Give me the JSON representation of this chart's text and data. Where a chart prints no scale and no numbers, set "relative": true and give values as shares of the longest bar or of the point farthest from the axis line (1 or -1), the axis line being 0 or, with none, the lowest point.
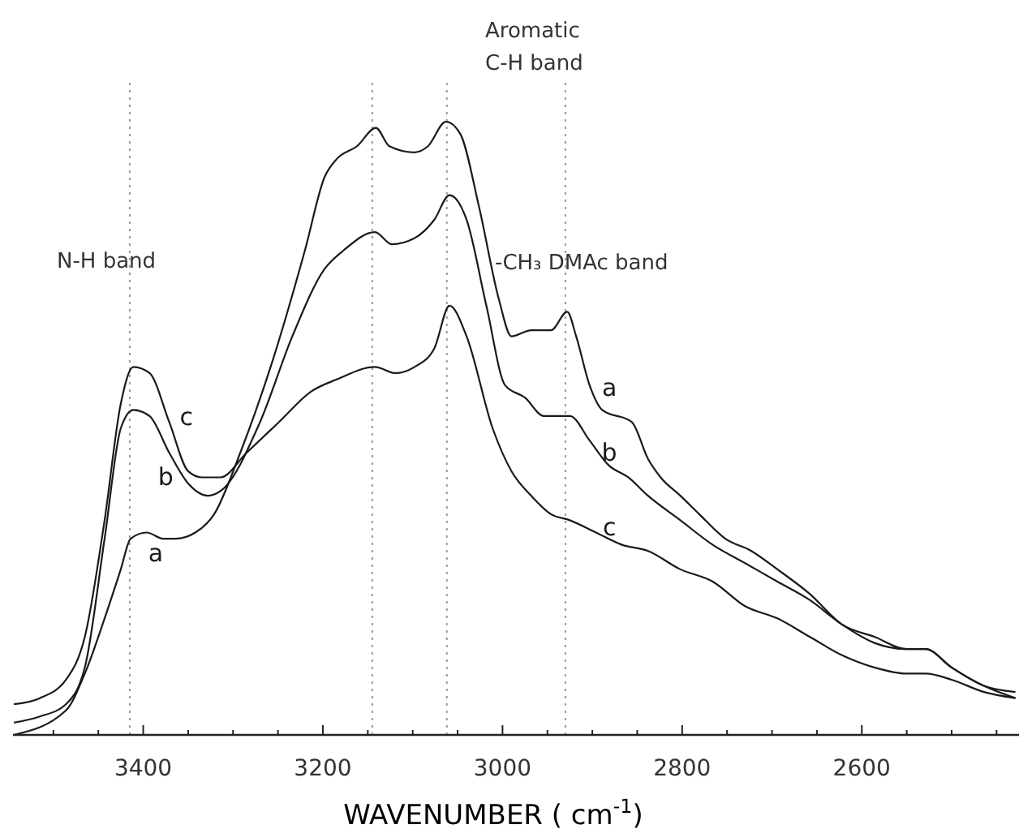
{
  "chart_data": {
    "type": "line",
    "relative": true,
    "xlabel": "WAVENUMBER ( cm$^{-1}$)",
    "xlim": [
      3545,
      2425
    ],
    "xticks": [
      {
        "value": 3500,
        "label": null
      },
      {
        "value": 3450,
        "label": null
      },
      3400,
      {
        "value": 3350,
        "label": null
      },
      {
        "value": 3300,
        "label": null
      },
      {
        "value": 3250,
        "label": null
      },
      3200,
      {
        "value": 3150,
        "label": null
      },
      {
        "value": 3100,
        "label": null
      },
      {
        "value": 3050,
        "label": null
      },
      3000,
      {
        "value": 2950,
        "label": null
      },
      {
        "value": 2900,
        "label": null
      },
      {
        "value": 2850,
        "label": null
      },
      2800,
      {
        "value": 2750,
        "label": null
      },
      {
        "value": 2700,
        "label": null
      },
      {
        "value": 2650,
        "label": null
      },
      2600,
      {
        "value": 2550,
        "label": null
      },
      {
        "value": 2500,
        "label": null
      },
      {
        "value": 2450,
        "label": null
      }
    ],
    "grid": false,
    "marker": "none",
    "line_style": "solid",
    "series": [
      {
        "name": "a",
        "color": "#1a1a1a",
        "x": [
          3544,
          3486,
          3465,
          3443,
          3425,
          3414,
          3396,
          3378,
          3364,
          3342,
          3321,
          3292,
          3256,
          3220,
          3198,
          3184,
          3162,
          3141,
          3126,
          3098,
          3083,
          3063,
          3047,
          3026,
          3004,
          2990,
          2968,
          2946,
          2928,
          2918,
          2903,
          2889,
          2856,
          2838,
          2824,
          2802,
          2781,
          2752,
          2723,
          2694,
          2658,
          2622,
          2586,
          2550,
          2529,
          2500,
          2464,
          2429
        ],
        "values": [
          0.0,
          0.04,
          0.1,
          0.19,
          0.27,
          0.32,
          0.33,
          0.32,
          0.32,
          0.33,
          0.36,
          0.46,
          0.61,
          0.79,
          0.91,
          0.94,
          0.96,
          0.99,
          0.96,
          0.95,
          0.96,
          1.0,
          0.98,
          0.86,
          0.71,
          0.65,
          0.66,
          0.66,
          0.69,
          0.65,
          0.57,
          0.53,
          0.51,
          0.45,
          0.42,
          0.39,
          0.36,
          0.32,
          0.3,
          0.27,
          0.23,
          0.18,
          0.16,
          0.14,
          0.14,
          0.11,
          0.08,
          0.07
        ]
      },
      {
        "name": "b",
        "color": "#1a1a1a",
        "x": [
          3544,
          3515,
          3486,
          3465,
          3443,
          3425,
          3411,
          3393,
          3371,
          3350,
          3328,
          3312,
          3270,
          3234,
          3198,
          3177,
          3142,
          3123,
          3098,
          3076,
          3059,
          3040,
          3018,
          2997,
          2975,
          2954,
          2925,
          2903,
          2882,
          2860,
          2838,
          2802,
          2766,
          2730,
          2694,
          2658,
          2622,
          2586,
          2550,
          2529,
          2500,
          2464,
          2429
        ],
        "values": [
          0.02,
          0.03,
          0.05,
          0.11,
          0.32,
          0.5,
          0.53,
          0.52,
          0.46,
          0.41,
          0.39,
          0.4,
          0.51,
          0.65,
          0.76,
          0.79,
          0.82,
          0.8,
          0.81,
          0.84,
          0.88,
          0.84,
          0.7,
          0.57,
          0.55,
          0.52,
          0.52,
          0.48,
          0.44,
          0.42,
          0.39,
          0.35,
          0.31,
          0.28,
          0.25,
          0.22,
          0.18,
          0.15,
          0.14,
          0.14,
          0.11,
          0.08,
          0.06
        ]
      },
      {
        "name": "c",
        "color": "#1a1a1a",
        "x": [
          3544,
          3515,
          3486,
          3465,
          3443,
          3425,
          3411,
          3393,
          3371,
          3350,
          3335,
          3314,
          3285,
          3249,
          3213,
          3184,
          3142,
          3119,
          3098,
          3076,
          3059,
          3040,
          3011,
          2990,
          2968,
          2946,
          2925,
          2896,
          2867,
          2838,
          2802,
          2766,
          2730,
          2694,
          2658,
          2622,
          2586,
          2550,
          2529,
          2500,
          2464,
          2429
        ],
        "values": [
          0.05,
          0.06,
          0.09,
          0.16,
          0.35,
          0.54,
          0.6,
          0.59,
          0.51,
          0.43,
          0.42,
          0.42,
          0.46,
          0.51,
          0.56,
          0.58,
          0.6,
          0.59,
          0.6,
          0.63,
          0.7,
          0.65,
          0.5,
          0.43,
          0.39,
          0.36,
          0.35,
          0.33,
          0.31,
          0.3,
          0.27,
          0.25,
          0.21,
          0.19,
          0.16,
          0.13,
          0.11,
          0.1,
          0.1,
          0.09,
          0.07,
          0.06
        ]
      }
    ],
    "ref_lines": [
      {
        "axis": "x",
        "value": 3415,
        "line_style": "dotted",
        "color": "#999999"
      },
      {
        "axis": "x",
        "value": 3145,
        "line_style": "dotted",
        "color": "#999999"
      },
      {
        "axis": "x",
        "value": 3062,
        "line_style": "dotted",
        "color": "#999999"
      },
      {
        "axis": "x",
        "value": 2930,
        "line_style": "dotted",
        "color": "#999999"
      }
    ],
    "annotations": [
      "N-H  band",
      "Aromatic\nC-H band",
      "-CH₃ DMAc band"
    ]
  }
}
